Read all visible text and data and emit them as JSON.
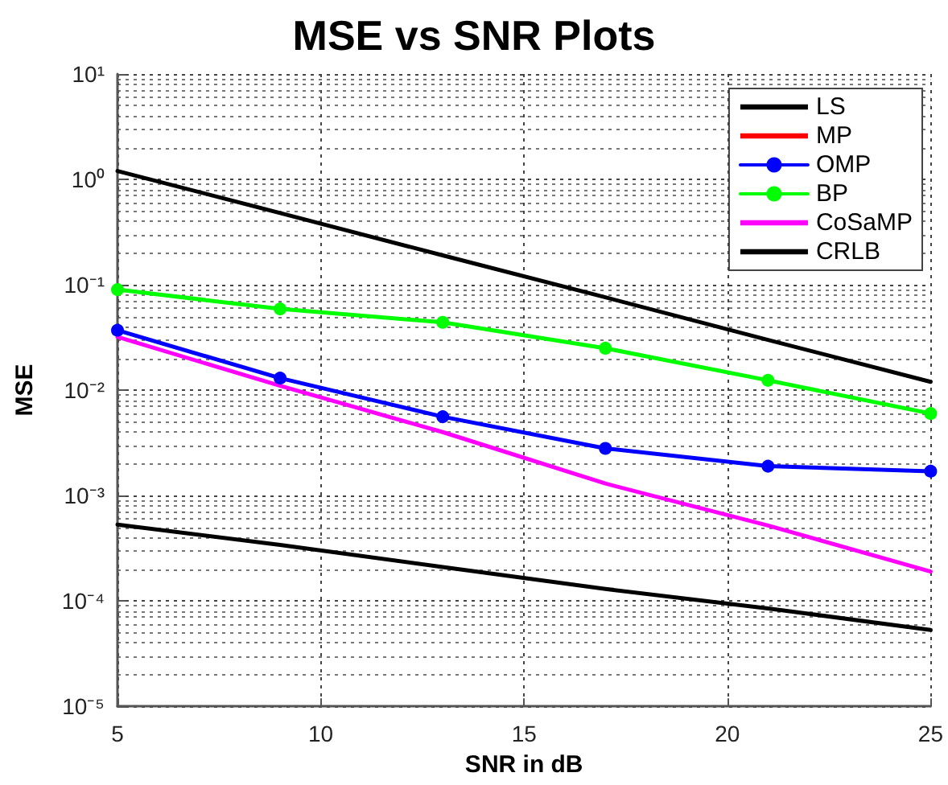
{
  "chart_data": {
    "type": "line",
    "title": "MSE vs SNR Plots",
    "xlabel": "SNR in dB",
    "ylabel": "MSE",
    "x": [
      5,
      9,
      13,
      17,
      21,
      25
    ],
    "series": [
      {
        "name": "LS",
        "color": "#000000",
        "values": [
          1.2,
          0.48,
          0.19,
          0.076,
          0.03,
          0.012
        ]
      },
      {
        "name": "MP",
        "color": "#ff0000",
        "values": [
          null,
          null,
          null,
          null,
          null,
          null
        ]
      },
      {
        "name": "OMP",
        "color": "#0000ff",
        "marker": "circle",
        "values": [
          0.037,
          0.013,
          0.0056,
          0.0028,
          0.0019,
          0.0017
        ]
      },
      {
        "name": "BP",
        "color": "#00ff00",
        "marker": "circle",
        "values": [
          0.09,
          0.059,
          0.044,
          0.025,
          0.0124,
          0.006
        ]
      },
      {
        "name": "CoSaMP",
        "color": "#ff00ff",
        "values": [
          0.032,
          0.011,
          0.004,
          0.0013,
          0.00052,
          0.00019
        ]
      },
      {
        "name": "CRLB",
        "color": "#000000",
        "values": [
          0.00053,
          0.00034,
          0.00021,
          0.00013,
          8.5e-05,
          5.3e-05
        ]
      }
    ],
    "xlim": [
      5,
      25
    ],
    "xticks": [
      5,
      10,
      15,
      20,
      25
    ],
    "ylim": [
      1e-05,
      10
    ],
    "yticks": [
      {
        "value": 1e-05,
        "label": "10⁻⁵"
      },
      {
        "value": 0.0001,
        "label": "10⁻⁴"
      },
      {
        "value": 0.001,
        "label": "10⁻³"
      },
      {
        "value": 0.01,
        "label": "10⁻²"
      },
      {
        "value": 0.1,
        "label": "10⁻¹"
      },
      {
        "value": 1,
        "label": "10⁰"
      },
      {
        "value": 10,
        "label": "10¹"
      }
    ],
    "log": "y",
    "grid": true,
    "legend": "top right",
    "marker": "none",
    "line_style": "solid"
  }
}
